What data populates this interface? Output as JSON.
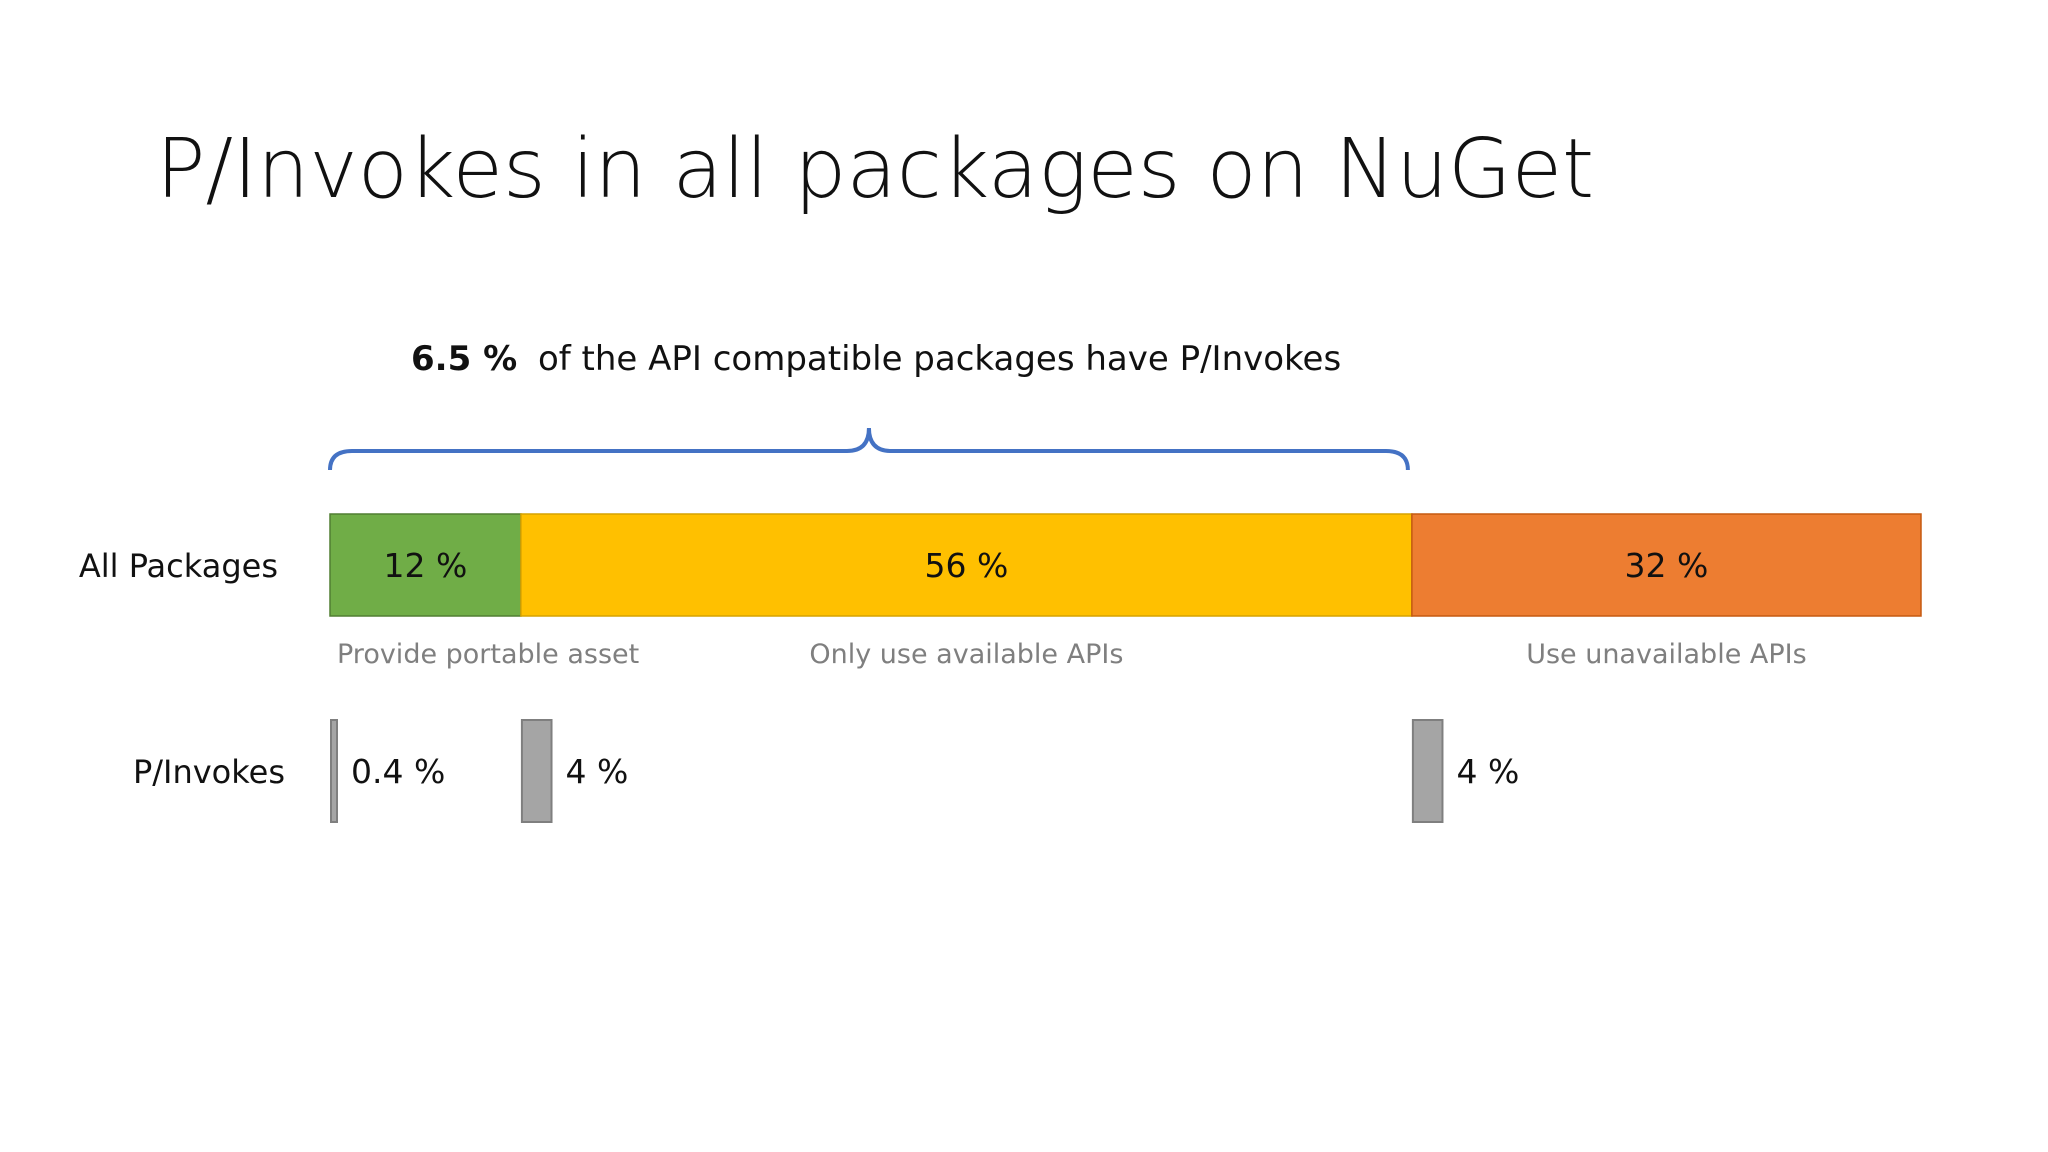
{
  "title": "P/Invokes in all packages on NuGet",
  "brace_note": {
    "bold": "6.5 %",
    "rest": "of the API compatible packages have P/Invokes"
  },
  "chart_data": {
    "type": "bar",
    "title": "P/Invokes in all packages on NuGet",
    "rows": [
      "All Packages",
      "P/Invokes"
    ],
    "categories": [
      "Provide portable asset",
      "Only use available APIs",
      "Use unavailable APIs"
    ],
    "all_packages": {
      "label": "All Packages",
      "values": [
        12,
        56,
        32
      ],
      "value_labels": [
        "12 %",
        "56 %",
        "32 %"
      ],
      "colors": [
        "#70ad47",
        "#ffc000",
        "#ed7d31"
      ]
    },
    "pinvokes": {
      "label": "P/Invokes",
      "values": [
        0.4,
        4,
        4
      ],
      "value_labels": [
        "0.4 %",
        "4 %",
        "4 %"
      ],
      "color": "#a5a5a5"
    },
    "annotation": "6.5 % of the API compatible packages have P/Invokes",
    "annotation_spans": [
      "Provide portable asset",
      "Only use available APIs"
    ],
    "xlim": [
      0,
      100
    ]
  }
}
